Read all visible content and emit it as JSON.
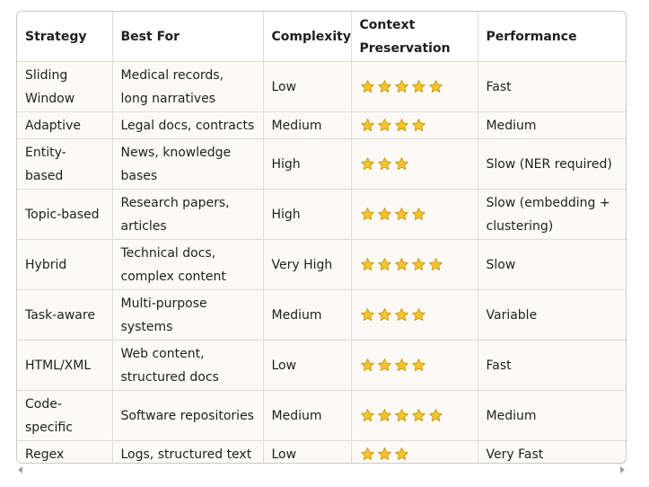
{
  "table": {
    "headers": [
      "Strategy",
      "Best For",
      "Complexity",
      "Context Preservation",
      "Performance"
    ],
    "rows": [
      {
        "strategy": "Sliding Window",
        "best_for": "Medical records, long narratives",
        "complexity": "Low",
        "stars": 5,
        "performance": "Fast"
      },
      {
        "strategy": "Adaptive",
        "best_for": "Legal docs, contracts",
        "complexity": "Medium",
        "stars": 4,
        "performance": "Medium"
      },
      {
        "strategy": "Entity-based",
        "best_for": "News, knowledge bases",
        "complexity": "High",
        "stars": 3,
        "performance": "Slow (NER required)"
      },
      {
        "strategy": "Topic-based",
        "best_for": "Research papers, articles",
        "complexity": "High",
        "stars": 4,
        "performance": "Slow (embedding + clustering)"
      },
      {
        "strategy": "Hybrid",
        "best_for": "Technical docs, complex content",
        "complexity": "Very High",
        "stars": 5,
        "performance": "Slow"
      },
      {
        "strategy": "Task-aware",
        "best_for": "Multi-purpose systems",
        "complexity": "Medium",
        "stars": 4,
        "performance": "Variable"
      },
      {
        "strategy": "HTML/XML",
        "best_for": "Web content, structured docs",
        "complexity": "Low",
        "stars": 4,
        "performance": "Fast"
      },
      {
        "strategy": "Code-specific",
        "best_for": "Software repositories",
        "complexity": "Medium",
        "stars": 5,
        "performance": "Medium"
      },
      {
        "strategy": "Regex",
        "best_for": "Logs, structured text",
        "complexity": "Low",
        "stars": 3,
        "performance": "Very Fast"
      }
    ]
  },
  "icons": {
    "star": "star-icon",
    "scroll_left": "scroll-left-arrow-icon",
    "scroll_right": "scroll-right-arrow-icon"
  },
  "colors": {
    "star_fill": "#f4c430",
    "star_stroke": "#c99400",
    "border": "#e0ddd6",
    "frame": "#c9c9c9",
    "background": "#fbfaf7"
  }
}
